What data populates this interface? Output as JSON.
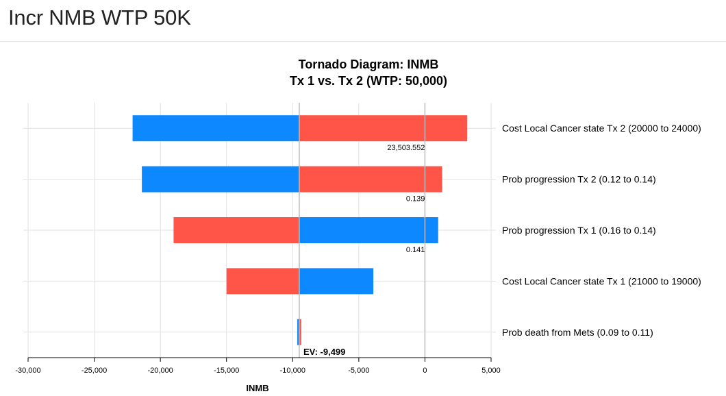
{
  "header": {
    "title": "Incr NMB WTP 50K"
  },
  "colors": {
    "low": "#ff5548",
    "high": "#0d88ff",
    "grid": "#e2e2e2",
    "ref_line": "#bbbbbb"
  },
  "chart_data": {
    "type": "bar",
    "orientation": "horizontal",
    "title": [
      "Tornado Diagram: INMB",
      "Tx 1 vs. Tx 2 (WTP: 50,000)"
    ],
    "xlabel": "INMB",
    "ylabel": "",
    "xlim": [
      -30000,
      5000
    ],
    "xticks": [
      -30000,
      -25000,
      -20000,
      -15000,
      -10000,
      -5000,
      0,
      5000
    ],
    "xtick_labels": [
      "-30,000",
      "-25,000",
      "-20,000",
      "-15,000",
      "-10,000",
      "-5,000",
      "0",
      "5,000"
    ],
    "grid": true,
    "expected_value": -9499,
    "ev_label": "EV: -9,499",
    "series": [
      {
        "name": "low",
        "color": "#ff5548"
      },
      {
        "name": "high",
        "color": "#0d88ff"
      }
    ],
    "bars": [
      {
        "category": "Cost Local Cancer state Tx 2 (20000 to 24000)",
        "red_end": 3200,
        "blue_end": -22100,
        "threshold_label": "23,503.552",
        "threshold": 0
      },
      {
        "category": "Prob progression Tx 2 (0.12 to 0.14)",
        "red_end": 1300,
        "blue_end": -21400,
        "threshold_label": "0.139",
        "threshold": 0
      },
      {
        "category": "Prob progression Tx 1 (0.16 to 0.14)",
        "red_end": -19000,
        "blue_end": 1000,
        "threshold_label": "0.141",
        "threshold": 0
      },
      {
        "category": "Cost Local Cancer state Tx 1 (21000 to 19000)",
        "red_end": -15000,
        "blue_end": -3900,
        "threshold_label": "",
        "threshold": null
      },
      {
        "category": "Prob death from Mets (0.09 to 0.11)",
        "red_end": -9350,
        "blue_end": -9650,
        "threshold_label": "",
        "threshold": null
      }
    ]
  }
}
